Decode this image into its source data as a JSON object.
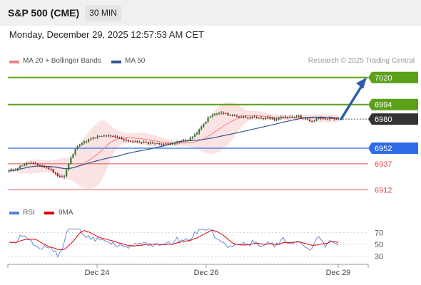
{
  "header": {
    "title": "S&P 500 (CME)",
    "timeframe": "30 MIN"
  },
  "datetime": "Monday, December 29, 2025 12:57:53 AM CET",
  "legend": {
    "main": [
      {
        "label": "MA 20 + Bollinger Bands",
        "color": "#f08080"
      },
      {
        "label": "MA 50",
        "color": "#2f5597"
      }
    ],
    "rsi": [
      {
        "label": "RSI",
        "color": "#5b7fd4"
      },
      {
        "label": "9MA",
        "color": "#e00000"
      }
    ]
  },
  "copyright": "Research © 2025 Trading Central",
  "chart_data": {
    "type": "candlestick",
    "price_range": [
      6904,
      7026
    ],
    "levels": [
      {
        "value": 7020,
        "label": "7020",
        "kind": "resistance",
        "color": "#5aa019"
      },
      {
        "value": 6994,
        "label": "6994",
        "kind": "resistance",
        "color": "#5aa019"
      },
      {
        "value": 6980,
        "label": "6980",
        "kind": "last",
        "color": "#333333"
      },
      {
        "value": 6952,
        "label": "6952",
        "kind": "pivot",
        "color": "#2e6be6"
      },
      {
        "value": 6937,
        "label": "6937",
        "kind": "support",
        "color": "#e8504f"
      },
      {
        "value": 6912,
        "label": "6912",
        "kind": "support",
        "color": "#e8504f"
      }
    ],
    "target_arrow": {
      "from": 6980,
      "to": 7020
    },
    "close_path": [
      6930,
      6932,
      6936,
      6938,
      6936,
      6934,
      6932,
      6926,
      6924,
      6942,
      6955,
      6958,
      6961,
      6963,
      6964,
      6963,
      6962,
      6960,
      6958,
      6958,
      6957,
      6957,
      6956,
      6956,
      6957,
      6958,
      6960,
      6964,
      6972,
      6981,
      6985,
      6986,
      6984,
      6983,
      6982,
      6982,
      6981,
      6981,
      6981,
      6980,
      6982,
      6982,
      6983,
      6981,
      6977,
      6981,
      6980,
      6981,
      6980
    ],
    "x_ticks": [
      "Dec 24",
      "Dec 26",
      "Dec 29"
    ],
    "rsi": {
      "ticks": [
        70,
        50,
        30
      ],
      "range": [
        20,
        80
      ]
    }
  }
}
